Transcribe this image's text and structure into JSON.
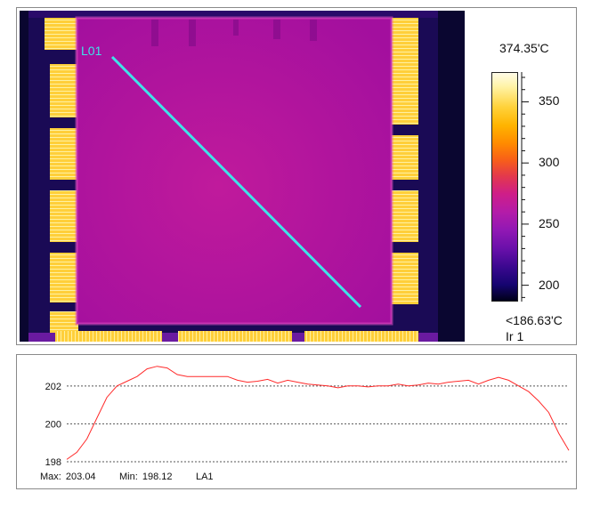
{
  "thermal": {
    "line_label": "L01",
    "max_temp": "374.35'C",
    "min_temp": "<186.63'C",
    "roi_label": "Ir 1",
    "scale_ticks": [
      "350",
      "300",
      "250",
      "200"
    ],
    "scale_tick_values": [
      350,
      300,
      250,
      200
    ],
    "scale_range": [
      186.63,
      374.35
    ],
    "colors": {
      "line": "#3fe3e8",
      "die": "#b0129f",
      "pad": "#ffd24a"
    }
  },
  "profile": {
    "stats": {
      "max_label": "Max:",
      "max_value": "203.04",
      "min_label": "Min:",
      "min_value": "198.12",
      "line_name": "LA1"
    },
    "line_color": "#ff2a2a"
  },
  "chart_data": {
    "type": "line",
    "title": "",
    "xlabel": "",
    "ylabel": "",
    "ylim": [
      198,
      203.4
    ],
    "yticks": [
      198,
      200,
      202
    ],
    "grid": "horizontal dotted",
    "series": [
      {
        "name": "LA1",
        "x": [
          0,
          2,
          4,
          6,
          8,
          10,
          12,
          14,
          16,
          18,
          20,
          22,
          24,
          26,
          28,
          30,
          32,
          34,
          36,
          38,
          40,
          42,
          44,
          46,
          48,
          50,
          52,
          54,
          56,
          58,
          60,
          62,
          64,
          66,
          68,
          70,
          72,
          74,
          76,
          78,
          80,
          82,
          84,
          86,
          88,
          90,
          92,
          94,
          96,
          98,
          100
        ],
        "values": [
          198.12,
          198.5,
          199.2,
          200.3,
          201.4,
          202.0,
          202.25,
          202.5,
          202.9,
          203.04,
          202.95,
          202.6,
          202.5,
          202.5,
          202.5,
          202.5,
          202.5,
          202.3,
          202.2,
          202.25,
          202.35,
          202.15,
          202.3,
          202.2,
          202.1,
          202.05,
          202.0,
          201.9,
          202.0,
          202.0,
          201.95,
          202.0,
          202.0,
          202.1,
          202.0,
          202.05,
          202.15,
          202.1,
          202.2,
          202.25,
          202.3,
          202.1,
          202.3,
          202.45,
          202.3,
          202.0,
          201.7,
          201.2,
          200.6,
          199.5,
          198.6
        ]
      }
    ]
  }
}
